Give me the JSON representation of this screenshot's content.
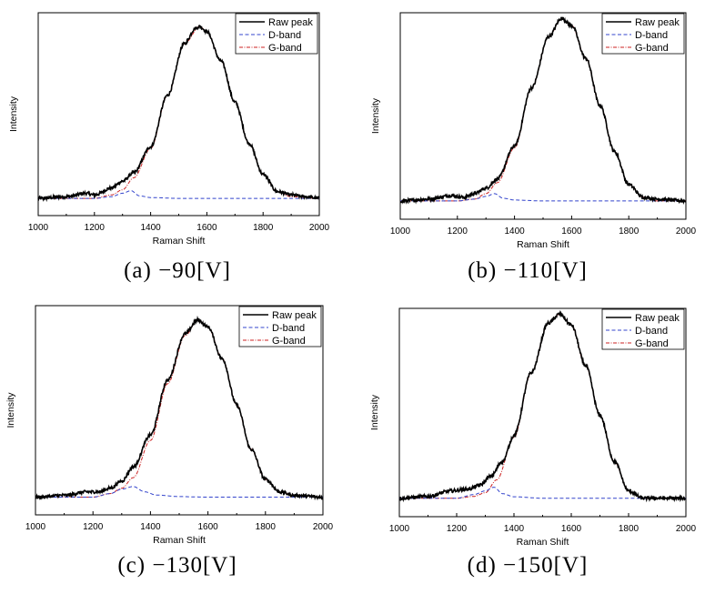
{
  "figure": {
    "captions": [
      "(a) −90[V]",
      "(b) −110[V]",
      "(c) −130[V]",
      "(d) −150[V]"
    ]
  },
  "chart_data": [
    {
      "type": "line",
      "caption": "(a) −90[V]",
      "xlabel": "Raman Shift",
      "ylabel": "Intensity",
      "xlim": [
        1000,
        2000
      ],
      "xticks": [
        1000,
        1200,
        1400,
        1600,
        1800,
        2000
      ],
      "ylim": [
        -0.1,
        1.08
      ],
      "yticks_shown": false,
      "grid": false,
      "legend_position": "top-right",
      "colors": {
        "raw": "#000000",
        "d": "#3344cc",
        "g": "#cc2222"
      },
      "series": [
        {
          "name": "Raw peak",
          "x": [
            1000,
            1100,
            1170,
            1200,
            1260,
            1300,
            1340,
            1400,
            1460,
            1520,
            1560,
            1575,
            1600,
            1650,
            1700,
            1750,
            1800,
            1850,
            1900,
            1950,
            2000
          ],
          "y": [
            0.0,
            0.01,
            0.03,
            0.02,
            0.06,
            0.1,
            0.15,
            0.3,
            0.6,
            0.9,
            0.99,
            1.0,
            0.97,
            0.8,
            0.56,
            0.32,
            0.14,
            0.04,
            0.02,
            0.01,
            0.0
          ]
        },
        {
          "name": "D-band",
          "x": [
            1000,
            1200,
            1260,
            1300,
            1330,
            1360,
            1400,
            1500,
            2000
          ],
          "y": [
            0.0,
            0.0,
            0.01,
            0.03,
            0.045,
            0.015,
            0.005,
            0.0,
            0.0
          ]
        },
        {
          "name": "G-band",
          "x": [
            1000,
            1200,
            1260,
            1300,
            1340,
            1400,
            1460,
            1520,
            1575,
            1600,
            1650,
            1700,
            1750,
            1800,
            1850,
            1900,
            2000
          ],
          "y": [
            0.0,
            0.0,
            0.02,
            0.05,
            0.12,
            0.29,
            0.6,
            0.9,
            1.0,
            0.97,
            0.8,
            0.56,
            0.32,
            0.14,
            0.04,
            0.01,
            0.0
          ]
        }
      ]
    },
    {
      "type": "line",
      "caption": "(b) −110[V]",
      "xlabel": "Raman Shift",
      "ylabel": "Intensity",
      "xlim": [
        1000,
        2000
      ],
      "xticks": [
        1000,
        1200,
        1400,
        1600,
        1800,
        2000
      ],
      "ylim": [
        -0.1,
        1.03
      ],
      "yticks_shown": false,
      "grid": false,
      "legend_position": "top-right",
      "colors": {
        "raw": "#000000",
        "d": "#3344cc",
        "g": "#cc2222"
      },
      "series": [
        {
          "name": "Raw peak",
          "x": [
            1000,
            1100,
            1180,
            1220,
            1260,
            1300,
            1340,
            1400,
            1460,
            1520,
            1565,
            1600,
            1650,
            1700,
            1750,
            1800,
            1850,
            1900,
            2000
          ],
          "y": [
            0.0,
            0.01,
            0.03,
            0.02,
            0.04,
            0.07,
            0.12,
            0.3,
            0.62,
            0.9,
            1.0,
            0.96,
            0.78,
            0.52,
            0.27,
            0.09,
            0.02,
            0.01,
            0.0
          ]
        },
        {
          "name": "D-band",
          "x": [
            1000,
            1200,
            1260,
            1300,
            1330,
            1360,
            1400,
            1500,
            2000
          ],
          "y": [
            0.0,
            0.0,
            0.01,
            0.025,
            0.04,
            0.015,
            0.005,
            0.0,
            0.0
          ]
        },
        {
          "name": "G-band",
          "x": [
            1000,
            1200,
            1260,
            1300,
            1340,
            1400,
            1460,
            1520,
            1565,
            1600,
            1650,
            1700,
            1750,
            1800,
            1850,
            1900,
            2000
          ],
          "y": [
            0.0,
            0.0,
            0.01,
            0.04,
            0.1,
            0.29,
            0.62,
            0.9,
            1.0,
            0.96,
            0.78,
            0.52,
            0.27,
            0.09,
            0.02,
            0.0,
            0.0
          ]
        }
      ]
    },
    {
      "type": "line",
      "caption": "(c) −130[V]",
      "xlabel": "Raman Shift",
      "ylabel": "Intensity",
      "xlim": [
        1000,
        2000
      ],
      "xticks": [
        1000,
        1200,
        1400,
        1600,
        1800,
        2000
      ],
      "ylim": [
        -0.1,
        1.08
      ],
      "yticks_shown": false,
      "grid": false,
      "legend_position": "top-right",
      "colors": {
        "raw": "#000000",
        "d": "#3344cc",
        "g": "#cc2222"
      },
      "series": [
        {
          "name": "Raw peak",
          "x": [
            1000,
            1100,
            1180,
            1220,
            1260,
            1300,
            1340,
            1400,
            1460,
            1520,
            1565,
            1600,
            1650,
            1700,
            1750,
            1800,
            1850,
            1900,
            2000
          ],
          "y": [
            0.0,
            0.01,
            0.03,
            0.03,
            0.05,
            0.09,
            0.17,
            0.35,
            0.66,
            0.92,
            1.0,
            0.96,
            0.78,
            0.52,
            0.27,
            0.1,
            0.03,
            0.01,
            0.0
          ]
        },
        {
          "name": "D-band",
          "x": [
            1000,
            1200,
            1260,
            1300,
            1340,
            1380,
            1420,
            1500,
            1600,
            2000
          ],
          "y": [
            0.0,
            0.0,
            0.02,
            0.045,
            0.06,
            0.03,
            0.012,
            0.003,
            0.0,
            0.0
          ]
        },
        {
          "name": "G-band",
          "x": [
            1000,
            1200,
            1260,
            1300,
            1340,
            1400,
            1460,
            1520,
            1565,
            1600,
            1650,
            1700,
            1750,
            1800,
            1850,
            1900,
            2000
          ],
          "y": [
            0.0,
            0.0,
            0.02,
            0.05,
            0.11,
            0.32,
            0.64,
            0.91,
            1.0,
            0.96,
            0.78,
            0.52,
            0.27,
            0.1,
            0.03,
            0.01,
            0.0
          ]
        }
      ]
    },
    {
      "type": "line",
      "caption": "(d) −150[V]",
      "xlabel": "Raman Shift",
      "ylabel": "Intensity",
      "xlim": [
        1000,
        2000
      ],
      "xticks": [
        1000,
        1200,
        1400,
        1600,
        1800,
        2000
      ],
      "ylim": [
        -0.1,
        1.03
      ],
      "yticks_shown": false,
      "grid": false,
      "legend_position": "top-right",
      "colors": {
        "raw": "#000000",
        "d": "#3344cc",
        "g": "#cc2222"
      },
      "series": [
        {
          "name": "Raw peak",
          "x": [
            1000,
            1100,
            1180,
            1240,
            1280,
            1320,
            1360,
            1400,
            1460,
            1520,
            1560,
            1600,
            1650,
            1700,
            1750,
            1800,
            1850,
            1900,
            2000
          ],
          "y": [
            0.0,
            0.01,
            0.04,
            0.05,
            0.07,
            0.12,
            0.2,
            0.34,
            0.68,
            0.95,
            1.0,
            0.94,
            0.72,
            0.45,
            0.2,
            0.04,
            0.0,
            0.0,
            0.0
          ]
        },
        {
          "name": "D-band",
          "x": [
            1000,
            1200,
            1260,
            1300,
            1330,
            1360,
            1400,
            1500,
            2000
          ],
          "y": [
            0.0,
            0.0,
            0.02,
            0.04,
            0.06,
            0.025,
            0.008,
            0.0,
            0.0
          ]
        },
        {
          "name": "G-band",
          "x": [
            1000,
            1200,
            1260,
            1300,
            1340,
            1400,
            1460,
            1520,
            1560,
            1600,
            1650,
            1700,
            1750,
            1800,
            1850,
            2000
          ],
          "y": [
            0.0,
            0.0,
            0.01,
            0.03,
            0.1,
            0.33,
            0.68,
            0.95,
            1.0,
            0.94,
            0.72,
            0.45,
            0.2,
            0.04,
            0.0,
            0.0
          ]
        }
      ]
    }
  ]
}
